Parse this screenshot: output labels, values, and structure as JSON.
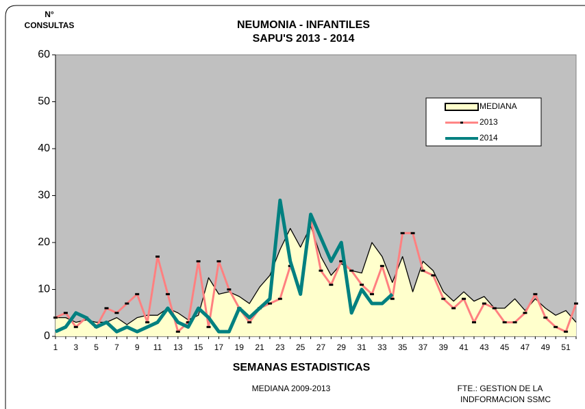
{
  "chart_data": {
    "type": "line",
    "title": [
      "NEUMONIA  -  INFANTILES",
      "SAPU'S   2013 - 2014"
    ],
    "y_label": [
      "N°",
      "CONSULTAS"
    ],
    "x_label": "SEMANAS ESTADISTICAS",
    "notes": [
      "MEDIANA 2009-2013",
      "FTE.: GESTION DE LA",
      "INDFORMACION SSMC"
    ],
    "categories": [
      1,
      null,
      3,
      null,
      5,
      null,
      7,
      null,
      9,
      null,
      11,
      null,
      13,
      null,
      15,
      null,
      17,
      null,
      19,
      null,
      21,
      null,
      23,
      null,
      25,
      null,
      27,
      null,
      29,
      null,
      31,
      null,
      33,
      null,
      35,
      null,
      37,
      null,
      39,
      null,
      41,
      null,
      43,
      null,
      45,
      null,
      47,
      null,
      49,
      null,
      51,
      null
    ],
    "series": [
      {
        "name": "MEDIANA",
        "color": "#000000",
        "fill": "#ffffcc",
        "values": [
          4,
          4,
          3,
          3.5,
          3,
          3,
          4,
          2.5,
          4,
          4.5,
          4.5,
          6,
          5,
          3.5,
          4.5,
          12.5,
          9,
          9.5,
          8.5,
          7,
          10.5,
          13,
          18.5,
          23,
          19,
          23.5,
          17,
          13,
          15.5,
          14,
          13.5,
          20,
          17,
          11.5,
          17,
          9.5,
          16,
          14,
          9.5,
          7.5,
          9.5,
          7.5,
          8.5,
          6,
          6,
          8,
          5.5,
          8,
          6,
          4.5,
          5.5,
          3
        ]
      },
      {
        "name": "2013",
        "color": "#ff8080",
        "values": [
          4,
          5,
          2,
          4,
          2,
          6,
          5,
          7,
          9,
          3,
          17,
          9,
          1,
          3,
          16,
          2,
          16,
          10,
          6,
          3,
          6,
          7,
          8,
          15,
          10,
          25,
          14,
          11,
          16,
          14,
          11,
          9,
          15,
          8,
          22,
          22,
          14,
          13,
          8,
          6,
          8,
          3,
          7,
          6,
          3,
          3,
          5,
          9,
          4,
          2,
          1,
          7
        ]
      },
      {
        "name": "2014",
        "color": "#008080",
        "values": [
          1,
          2,
          5,
          4,
          2,
          3,
          1,
          2,
          1,
          2,
          3,
          6,
          3,
          2,
          6,
          4,
          1,
          1,
          6,
          4,
          6,
          8,
          29,
          16,
          9,
          26,
          21,
          16,
          20,
          5,
          10,
          7,
          7,
          9,
          null,
          null,
          null,
          null,
          null,
          null,
          null,
          null,
          null,
          null,
          null,
          null,
          null,
          null,
          null,
          null,
          null,
          null
        ]
      }
    ],
    "ylim": [
      0,
      60
    ],
    "yticks": [
      0,
      10,
      20,
      30,
      40,
      50,
      60
    ],
    "grid": false,
    "plot_background": "#c0c0c0",
    "legend": "upper right"
  }
}
